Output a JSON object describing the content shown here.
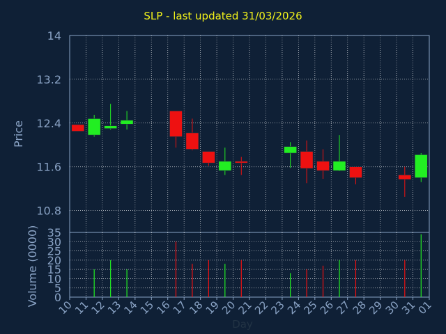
{
  "colors": {
    "background": "#0f2036",
    "grid": "#ffffff",
    "axis_text": "#8aa3c5",
    "title": "#f2f21a",
    "up": "#22ee22",
    "down": "#ee1111"
  },
  "chart_data": {
    "type": "candlestick",
    "title": "SLP - last updated 31/03/2026",
    "xlabel": "Day",
    "ylabel": "Price",
    "volume_label": "Volume (0000)",
    "price_ylim": [
      10.4,
      14
    ],
    "price_ticks": [
      10.8,
      11.6,
      12.4,
      13.2,
      14
    ],
    "volume_ylim": [
      0,
      35
    ],
    "volume_ticks": [
      0,
      5,
      10,
      15,
      20,
      25,
      30,
      35
    ],
    "x_ticks": [
      "10",
      "11",
      "12",
      "13",
      "14",
      "15",
      "16",
      "17",
      "18",
      "19",
      "20",
      "21",
      "22",
      "23",
      "24",
      "25",
      "26",
      "27",
      "28",
      "29",
      "30",
      "31",
      "01"
    ],
    "grid": true,
    "candles": [
      {
        "day": "10",
        "open": 12.37,
        "high": 12.37,
        "low": 12.25,
        "close": 12.25,
        "volume": 0
      },
      {
        "day": "11",
        "open": 12.18,
        "high": 12.55,
        "low": 12.15,
        "close": 12.48,
        "volume": 15
      },
      {
        "day": "12",
        "open": 12.3,
        "high": 12.75,
        "low": 12.28,
        "close": 12.35,
        "volume": 20
      },
      {
        "day": "13",
        "open": 12.38,
        "high": 12.62,
        "low": 12.28,
        "close": 12.45,
        "volume": 15
      },
      {
        "day": "16",
        "open": 12.62,
        "high": 12.62,
        "low": 11.95,
        "close": 12.15,
        "volume": 30
      },
      {
        "day": "17",
        "open": 12.22,
        "high": 12.48,
        "low": 11.9,
        "close": 11.92,
        "volume": 18
      },
      {
        "day": "18",
        "open": 11.88,
        "high": 11.88,
        "low": 11.62,
        "close": 11.67,
        "volume": 20
      },
      {
        "day": "19",
        "open": 11.53,
        "high": 11.95,
        "low": 11.45,
        "close": 11.7,
        "volume": 18
      },
      {
        "day": "20",
        "open": 11.7,
        "high": 11.78,
        "low": 11.45,
        "close": 11.67,
        "volume": 20
      },
      {
        "day": "23",
        "open": 11.85,
        "high": 12.05,
        "low": 11.58,
        "close": 11.97,
        "volume": 13
      },
      {
        "day": "24",
        "open": 11.88,
        "high": 12.08,
        "low": 11.3,
        "close": 11.57,
        "volume": 15
      },
      {
        "day": "25",
        "open": 11.7,
        "high": 11.92,
        "low": 11.38,
        "close": 11.53,
        "volume": 17
      },
      {
        "day": "26",
        "open": 11.53,
        "high": 12.18,
        "low": 11.52,
        "close": 11.7,
        "volume": 20
      },
      {
        "day": "27",
        "open": 11.6,
        "high": 11.6,
        "low": 11.28,
        "close": 11.4,
        "volume": 20
      },
      {
        "day": "30",
        "open": 11.45,
        "high": 11.6,
        "low": 11.05,
        "close": 11.37,
        "volume": 20
      },
      {
        "day": "31",
        "open": 11.4,
        "high": 11.85,
        "low": 11.32,
        "close": 11.82,
        "volume": 34
      }
    ]
  }
}
